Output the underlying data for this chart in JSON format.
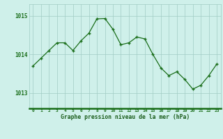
{
  "x": [
    0,
    1,
    2,
    3,
    4,
    5,
    6,
    7,
    8,
    9,
    10,
    11,
    12,
    13,
    14,
    15,
    16,
    17,
    18,
    19,
    20,
    21,
    22,
    23
  ],
  "y": [
    1013.7,
    1013.9,
    1014.1,
    1014.3,
    1014.3,
    1014.1,
    1014.35,
    1014.55,
    1014.92,
    1014.93,
    1014.65,
    1014.25,
    1014.3,
    1014.45,
    1014.4,
    1014.0,
    1013.65,
    1013.45,
    1013.55,
    1013.35,
    1013.1,
    1013.2,
    1013.45,
    1013.75
  ],
  "line_color": "#1a6e1a",
  "marker_color": "#1a6e1a",
  "bg_color": "#cff0ea",
  "grid_color": "#a0ccc4",
  "xlabel": "Graphe pression niveau de la mer (hPa)",
  "xlabel_color": "#1a5c1a",
  "tick_color": "#1a6e1a",
  "ylim": [
    1012.6,
    1015.3
  ],
  "yticks": [
    1013,
    1014,
    1015
  ],
  "xticks": [
    0,
    1,
    2,
    3,
    4,
    5,
    6,
    7,
    8,
    9,
    10,
    11,
    12,
    13,
    14,
    15,
    16,
    17,
    18,
    19,
    20,
    21,
    22,
    23
  ],
  "figsize": [
    3.2,
    2.0
  ],
  "dpi": 100
}
